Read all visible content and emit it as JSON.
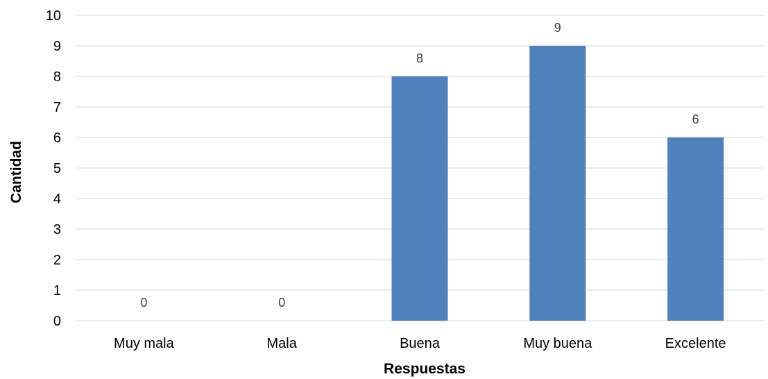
{
  "chart_data": {
    "type": "bar",
    "title": "",
    "categories": [
      "Muy mala",
      "Mala",
      "Buena",
      "Muy buena",
      "Excelente"
    ],
    "values": [
      0,
      0,
      8,
      9,
      6
    ],
    "data_labels": [
      "0",
      "0",
      "8",
      "9",
      "6"
    ],
    "xlabel": "Respuestas",
    "ylabel": "Cantidad",
    "ylim": [
      0,
      10
    ],
    "yticks": [
      "0",
      "1",
      "2",
      "3",
      "4",
      "5",
      "6",
      "7",
      "8",
      "9",
      "10"
    ],
    "grid": true,
    "legend": "none",
    "bar_color": "#4f81bd"
  }
}
